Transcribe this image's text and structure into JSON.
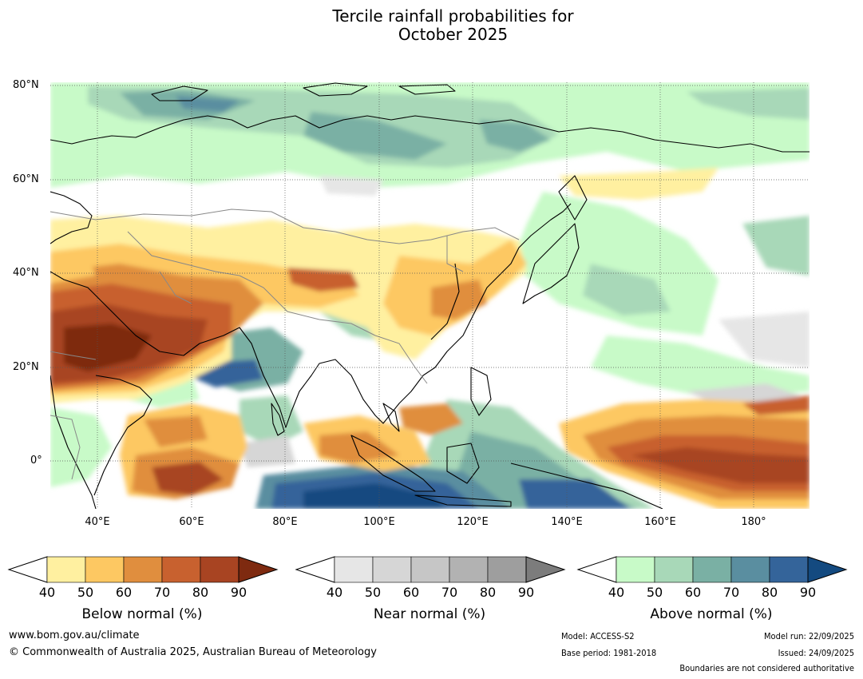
{
  "title": {
    "line1": "Tercile rainfall probabilities for",
    "line2": "October 2025"
  },
  "map": {
    "lat_labels": [
      "80°N",
      "60°N",
      "40°N",
      "20°N",
      "0°"
    ],
    "lon_labels": [
      "40°E",
      "60°E",
      "80°E",
      "100°E",
      "120°E",
      "140°E",
      "160°E",
      "180°"
    ]
  },
  "legends": [
    {
      "name": "Below normal (%)",
      "ticks": [
        "40",
        "50",
        "60",
        "70",
        "80",
        "90"
      ],
      "colors": [
        "#fff0a0",
        "#fdc862",
        "#e08e3e",
        "#c8612f",
        "#a84422",
        "#7e2a10"
      ],
      "extend": "right"
    },
    {
      "name": "Near normal (%)",
      "ticks": [
        "40",
        "50",
        "60",
        "70",
        "80",
        "90"
      ],
      "colors": [
        "#e6e6e6",
        "#d6d6d6",
        "#c6c6c6",
        "#b2b2b2",
        "#9e9e9e",
        "#7c7c7c"
      ],
      "extend": "right"
    },
    {
      "name": "Above normal (%)",
      "ticks": [
        "40",
        "50",
        "60",
        "70",
        "80",
        "90"
      ],
      "colors": [
        "#c8fac8",
        "#a8d8b8",
        "#7ab0a4",
        "#5a8ea0",
        "#34649a",
        "#144a80"
      ],
      "extend": "right"
    }
  ],
  "footer": {
    "url": "www.bom.gov.au/climate",
    "copyright": "© Commonwealth of Australia 2025, Australian Bureau of Meteorology",
    "model": "Model: ACCESS-S2",
    "base_period": "Base period: 1981-2018",
    "model_run": "Model run: 22/09/2025",
    "issued": "Issued: 24/09/2025",
    "boundaries": "Boundaries are not considered authoritative"
  }
}
